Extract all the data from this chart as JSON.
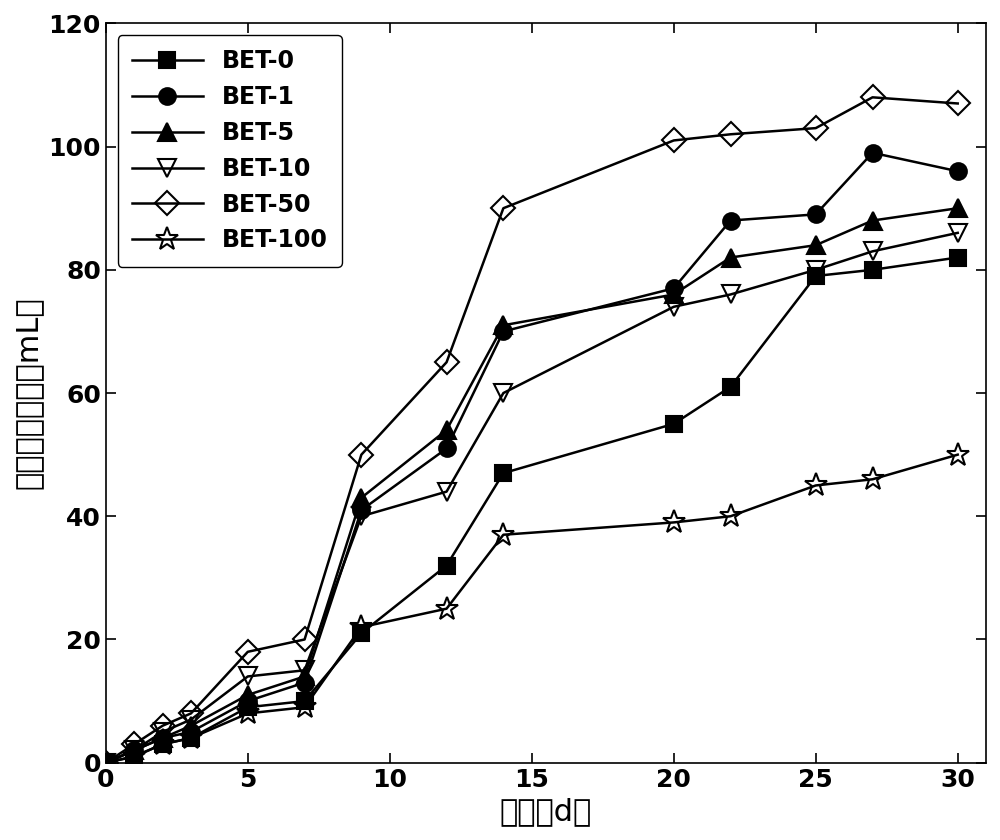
{
  "series": [
    {
      "label": "BET-0",
      "marker": "s",
      "fillstyle": "full",
      "color": "#000000",
      "x": [
        0,
        1,
        2,
        3,
        5,
        7,
        9,
        12,
        14,
        20,
        22,
        25,
        27,
        30
      ],
      "y": [
        0,
        1,
        3,
        4,
        9,
        10,
        21,
        32,
        47,
        55,
        61,
        79,
        80,
        82
      ]
    },
    {
      "label": "BET-1",
      "marker": "o",
      "fillstyle": "full",
      "color": "#000000",
      "x": [
        0,
        1,
        2,
        3,
        5,
        7,
        9,
        12,
        14,
        20,
        22,
        25,
        27,
        30
      ],
      "y": [
        0,
        2,
        4,
        5,
        10,
        13,
        41,
        51,
        70,
        77,
        88,
        89,
        99,
        96
      ]
    },
    {
      "label": "BET-5",
      "marker": "^",
      "fillstyle": "full",
      "color": "#000000",
      "x": [
        0,
        1,
        2,
        3,
        5,
        7,
        9,
        12,
        14,
        20,
        22,
        25,
        27,
        30
      ],
      "y": [
        0,
        2,
        4,
        6,
        11,
        14,
        43,
        54,
        71,
        76,
        82,
        84,
        88,
        90
      ]
    },
    {
      "label": "BET-10",
      "marker": "v",
      "fillstyle": "none",
      "color": "#000000",
      "x": [
        0,
        1,
        2,
        3,
        5,
        7,
        9,
        12,
        14,
        20,
        22,
        25,
        27,
        30
      ],
      "y": [
        0,
        2,
        5,
        7,
        14,
        15,
        40,
        44,
        60,
        74,
        76,
        80,
        83,
        86
      ]
    },
    {
      "label": "BET-50",
      "marker": "D",
      "fillstyle": "none",
      "color": "#000000",
      "x": [
        0,
        1,
        2,
        3,
        5,
        7,
        9,
        12,
        14,
        20,
        22,
        25,
        27,
        30
      ],
      "y": [
        0,
        3,
        6,
        8,
        18,
        20,
        50,
        65,
        90,
        101,
        102,
        103,
        108,
        107
      ]
    },
    {
      "label": "BET-100",
      "marker": "*",
      "fillstyle": "none",
      "color": "#000000",
      "x": [
        0,
        1,
        2,
        3,
        5,
        7,
        9,
        12,
        14,
        20,
        22,
        25,
        27,
        30
      ],
      "y": [
        0,
        1,
        3,
        4,
        8,
        9,
        22,
        25,
        37,
        39,
        40,
        45,
        46,
        50
      ]
    }
  ],
  "xlabel": "时间（d）",
  "ylabel": "甲烷累积产量（mL）",
  "xlim": [
    0,
    31
  ],
  "ylim": [
    0,
    120
  ],
  "xticks": [
    0,
    5,
    10,
    15,
    20,
    25,
    30
  ],
  "yticks": [
    0,
    20,
    40,
    60,
    80,
    100,
    120
  ],
  "xlabel_fontsize": 22,
  "ylabel_fontsize": 22,
  "tick_fontsize": 18,
  "legend_fontsize": 17,
  "linewidth": 1.8,
  "markersize": 11,
  "marker_sizes": {
    "s": 11,
    "o": 12,
    "^": 13,
    "v": 13,
    "D": 12,
    "*": 17
  }
}
